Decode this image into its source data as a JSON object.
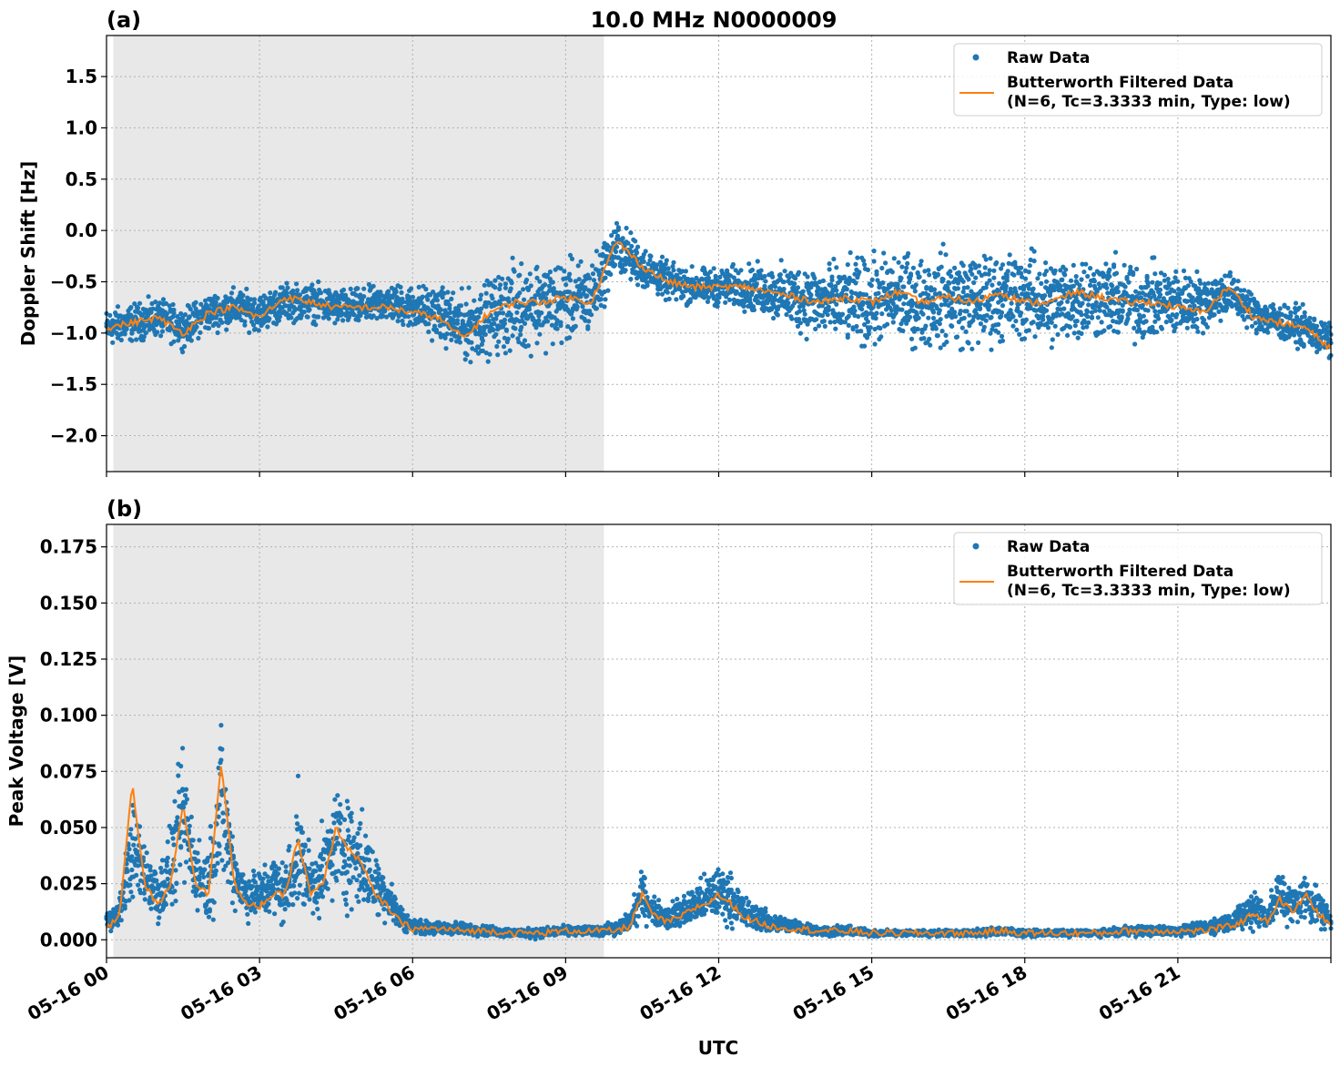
{
  "figure": {
    "title": "10.0 MHz N0000009",
    "xlabel": "UTC"
  },
  "colors": {
    "raw": "#1f77b4",
    "filtered": "#ff7f0e",
    "night_shade": "#e8e8e8",
    "grid": "#b0b0b0"
  },
  "chart_data": [
    {
      "type": "scatter",
      "panel_label": "(a)",
      "ylabel": "Doppler Shift [Hz]",
      "xlim": [
        "05-16 00:00",
        "05-17 00:00"
      ],
      "ylim": [
        -2.35,
        1.9
      ],
      "shaded_interval": [
        "05-16 00:08",
        "05-16 09:45"
      ],
      "grid": true,
      "legend_position": "top-right",
      "x_ticks": [
        "05-16 00",
        "05-16 03",
        "05-16 06",
        "05-16 09",
        "05-16 12",
        "05-16 15",
        "05-16 18",
        "05-16 21"
      ],
      "y_ticks": [
        {
          "value": 1.5,
          "label": "1.5"
        },
        {
          "value": 1.0,
          "label": "1.0"
        },
        {
          "value": 0.5,
          "label": "0.5"
        },
        {
          "value": 0.0,
          "label": "0.0"
        },
        {
          "value": -0.5,
          "label": "−0.5"
        },
        {
          "value": -1.0,
          "label": "−1.0"
        },
        {
          "value": -1.5,
          "label": "−1.5"
        },
        {
          "value": -2.0,
          "label": "−2.0"
        }
      ],
      "x_hours": [
        0,
        0.5,
        1,
        1.5,
        2,
        2.5,
        3,
        3.5,
        4,
        4.5,
        5,
        5.5,
        6,
        6.5,
        7,
        7.5,
        8,
        8.5,
        9,
        9.5,
        10,
        10.5,
        11,
        11.5,
        12,
        12.5,
        13,
        13.5,
        14,
        14.5,
        15,
        15.5,
        16,
        16.5,
        17,
        17.5,
        18,
        18.5,
        19,
        19.5,
        20,
        20.5,
        21,
        21.5,
        22,
        22.5,
        23,
        23.5,
        24
      ],
      "series": [
        {
          "name": "Raw Data",
          "values": [
            -0.95,
            -0.9,
            -0.85,
            -0.95,
            -0.8,
            -0.75,
            -0.8,
            -0.7,
            -0.7,
            -0.75,
            -0.75,
            -0.7,
            -0.75,
            -0.8,
            -0.95,
            -0.85,
            -0.75,
            -0.7,
            -0.7,
            -0.65,
            -0.15,
            -0.35,
            -0.5,
            -0.55,
            -0.55,
            -0.55,
            -0.6,
            -0.65,
            -0.7,
            -0.7,
            -0.7,
            -0.65,
            -0.7,
            -0.65,
            -0.7,
            -0.65,
            -0.65,
            -0.7,
            -0.65,
            -0.65,
            -0.7,
            -0.7,
            -0.7,
            -0.7,
            -0.6,
            -0.8,
            -0.9,
            -0.95,
            -1.1
          ],
          "spread": [
            0.25,
            0.25,
            0.25,
            0.25,
            0.25,
            0.25,
            0.25,
            0.25,
            0.25,
            0.25,
            0.25,
            0.25,
            0.3,
            0.35,
            0.45,
            0.5,
            0.6,
            0.6,
            0.55,
            0.5,
            0.35,
            0.3,
            0.25,
            0.25,
            0.25,
            0.3,
            0.35,
            0.45,
            0.5,
            0.55,
            0.6,
            0.6,
            0.6,
            0.65,
            0.65,
            0.6,
            0.6,
            0.6,
            0.6,
            0.55,
            0.55,
            0.5,
            0.45,
            0.4,
            0.3,
            0.25,
            0.25,
            0.25,
            0.25
          ]
        },
        {
          "name": "Butterworth Filtered Data\n(N=6, Tc=3.3333 min, Type: low)",
          "values": [
            -0.95,
            -0.9,
            -0.85,
            -1.0,
            -0.8,
            -0.75,
            -0.85,
            -0.65,
            -0.7,
            -0.75,
            -0.75,
            -0.75,
            -0.8,
            -0.85,
            -1.05,
            -0.8,
            -0.7,
            -0.7,
            -0.65,
            -0.7,
            -0.1,
            -0.35,
            -0.5,
            -0.55,
            -0.55,
            -0.55,
            -0.6,
            -0.65,
            -0.7,
            -0.65,
            -0.7,
            -0.6,
            -0.7,
            -0.65,
            -0.7,
            -0.6,
            -0.7,
            -0.7,
            -0.6,
            -0.65,
            -0.7,
            -0.7,
            -0.75,
            -0.8,
            -0.55,
            -0.85,
            -0.9,
            -0.95,
            -1.15
          ]
        }
      ]
    },
    {
      "type": "scatter",
      "panel_label": "(b)",
      "ylabel": "Peak Voltage [V]",
      "xlim": [
        "05-16 00:00",
        "05-17 00:00"
      ],
      "ylim": [
        -0.008,
        0.185
      ],
      "shaded_interval": [
        "05-16 00:08",
        "05-16 09:45"
      ],
      "grid": true,
      "legend_position": "top-right",
      "x_ticks": [
        "05-16 00",
        "05-16 03",
        "05-16 06",
        "05-16 09",
        "05-16 12",
        "05-16 15",
        "05-16 18",
        "05-16 21"
      ],
      "y_ticks": [
        {
          "value": 0.175,
          "label": "0.175"
        },
        {
          "value": 0.15,
          "label": "0.150"
        },
        {
          "value": 0.125,
          "label": "0.125"
        },
        {
          "value": 0.1,
          "label": "0.100"
        },
        {
          "value": 0.075,
          "label": "0.075"
        },
        {
          "value": 0.05,
          "label": "0.050"
        },
        {
          "value": 0.025,
          "label": "0.025"
        },
        {
          "value": 0.0,
          "label": "0.000"
        }
      ],
      "x_hours": [
        0,
        0.25,
        0.5,
        0.75,
        1,
        1.25,
        1.5,
        1.75,
        2,
        2.25,
        2.5,
        2.75,
        3,
        3.25,
        3.5,
        3.75,
        4,
        4.25,
        4.5,
        4.75,
        5,
        5.25,
        5.5,
        5.75,
        6,
        6.5,
        7,
        7.5,
        8,
        8.5,
        9,
        9.5,
        10,
        10.25,
        10.5,
        10.75,
        11,
        11.25,
        11.5,
        11.75,
        12,
        12.25,
        12.5,
        12.75,
        13,
        13.5,
        14,
        14.5,
        15,
        15.5,
        16,
        16.5,
        17,
        17.5,
        18,
        18.5,
        19,
        19.5,
        20,
        20.5,
        21,
        21.5,
        22,
        22.25,
        22.5,
        22.75,
        23,
        23.25,
        23.5,
        23.75,
        24
      ],
      "series": [
        {
          "name": "Raw Data",
          "values": [
            0.008,
            0.012,
            0.04,
            0.03,
            0.02,
            0.03,
            0.055,
            0.03,
            0.025,
            0.06,
            0.03,
            0.02,
            0.02,
            0.025,
            0.02,
            0.04,
            0.025,
            0.03,
            0.045,
            0.04,
            0.035,
            0.025,
            0.02,
            0.01,
            0.006,
            0.005,
            0.005,
            0.004,
            0.003,
            0.003,
            0.004,
            0.004,
            0.005,
            0.008,
            0.02,
            0.012,
            0.01,
            0.012,
            0.015,
            0.018,
            0.022,
            0.018,
            0.012,
            0.01,
            0.008,
            0.006,
            0.004,
            0.004,
            0.003,
            0.003,
            0.003,
            0.003,
            0.003,
            0.004,
            0.003,
            0.003,
            0.003,
            0.003,
            0.004,
            0.004,
            0.004,
            0.005,
            0.008,
            0.01,
            0.015,
            0.01,
            0.02,
            0.015,
            0.02,
            0.015,
            0.008
          ],
          "spread": [
            0.006,
            0.008,
            0.03,
            0.02,
            0.02,
            0.025,
            0.045,
            0.02,
            0.025,
            0.05,
            0.02,
            0.015,
            0.015,
            0.02,
            0.02,
            0.035,
            0.02,
            0.025,
            0.035,
            0.035,
            0.03,
            0.02,
            0.015,
            0.008,
            0.004,
            0.004,
            0.004,
            0.003,
            0.003,
            0.003,
            0.003,
            0.003,
            0.004,
            0.006,
            0.015,
            0.008,
            0.008,
            0.01,
            0.012,
            0.015,
            0.018,
            0.015,
            0.01,
            0.008,
            0.006,
            0.004,
            0.003,
            0.003,
            0.002,
            0.002,
            0.002,
            0.002,
            0.002,
            0.003,
            0.002,
            0.002,
            0.002,
            0.002,
            0.003,
            0.003,
            0.003,
            0.004,
            0.006,
            0.008,
            0.015,
            0.008,
            0.018,
            0.012,
            0.015,
            0.012,
            0.006
          ]
        },
        {
          "name": "Butterworth Filtered Data\n(N=6, Tc=3.3333 min, Type: low)",
          "values": [
            0.005,
            0.01,
            0.07,
            0.025,
            0.015,
            0.025,
            0.06,
            0.025,
            0.02,
            0.08,
            0.025,
            0.015,
            0.015,
            0.02,
            0.02,
            0.045,
            0.02,
            0.025,
            0.05,
            0.04,
            0.035,
            0.02,
            0.015,
            0.008,
            0.005,
            0.005,
            0.004,
            0.004,
            0.003,
            0.003,
            0.004,
            0.004,
            0.004,
            0.006,
            0.02,
            0.01,
            0.008,
            0.01,
            0.014,
            0.016,
            0.02,
            0.016,
            0.01,
            0.008,
            0.006,
            0.005,
            0.004,
            0.004,
            0.003,
            0.003,
            0.003,
            0.003,
            0.003,
            0.004,
            0.003,
            0.003,
            0.003,
            0.003,
            0.004,
            0.004,
            0.004,
            0.004,
            0.006,
            0.008,
            0.012,
            0.008,
            0.018,
            0.012,
            0.02,
            0.012,
            0.006
          ]
        }
      ]
    }
  ]
}
